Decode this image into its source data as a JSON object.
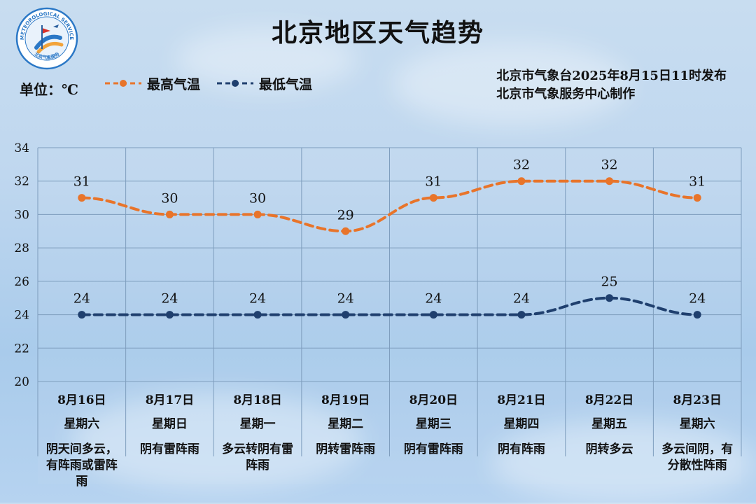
{
  "title": "北京地区天气趋势",
  "unit_label": "单位：℃",
  "legend": {
    "high_label": "最高气温",
    "low_label": "最低气温"
  },
  "issuer": {
    "line1": "北京市气象台2025年8月15日11时发布",
    "line2": "北京市气象服务中心制作"
  },
  "logo": {
    "top_text": "METEOROLOGICAL SERVICE",
    "bottom_text": "北京气象服务"
  },
  "colors": {
    "high": "#e8742a",
    "low": "#1f3f6e",
    "grid": "#7e9dbd"
  },
  "chart_data": {
    "type": "line",
    "categories": [
      {
        "date": "8月16日",
        "weekday": "星期六",
        "weather": [
          "阴天间多云，",
          "有阵雨或雷阵",
          "雨"
        ]
      },
      {
        "date": "8月17日",
        "weekday": "星期日",
        "weather": [
          "阴有雷阵雨"
        ]
      },
      {
        "date": "8月18日",
        "weekday": "星期一",
        "weather": [
          "多云转阴有雷",
          "阵雨"
        ]
      },
      {
        "date": "8月19日",
        "weekday": "星期二",
        "weather": [
          "阴转雷阵雨"
        ]
      },
      {
        "date": "8月20日",
        "weekday": "星期三",
        "weather": [
          "阴有雷阵雨"
        ]
      },
      {
        "date": "8月21日",
        "weekday": "星期四",
        "weather": [
          "阴有阵雨"
        ]
      },
      {
        "date": "8月22日",
        "weekday": "星期五",
        "weather": [
          "阴转多云"
        ]
      },
      {
        "date": "8月23日",
        "weekday": "星期六",
        "weather": [
          "多云间阴，有",
          "分散性阵雨"
        ]
      }
    ],
    "series": [
      {
        "name": "最高气温",
        "values": [
          31,
          30,
          30,
          29,
          31,
          32,
          32,
          31
        ]
      },
      {
        "name": "最低气温",
        "values": [
          24,
          24,
          24,
          24,
          24,
          24,
          25,
          24
        ]
      }
    ],
    "yticks": [
      20,
      22,
      24,
      26,
      28,
      30,
      32,
      34
    ],
    "ylim": [
      20,
      34
    ],
    "grid": true
  }
}
